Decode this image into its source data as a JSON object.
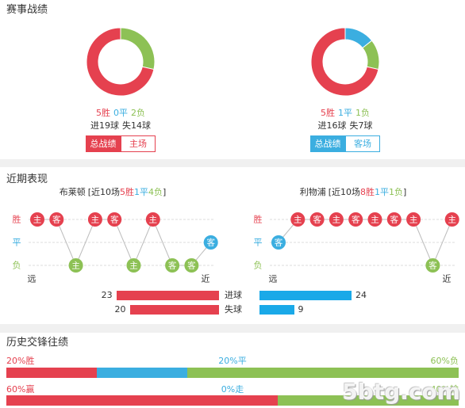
{
  "colors": {
    "win": "#e5414f",
    "draw": "#3baee0",
    "loss": "#8dc155",
    "text": "#333333"
  },
  "record": {
    "title": "赛事战绩",
    "teams": [
      {
        "wins": 5,
        "draws": 0,
        "losses": 2,
        "win_text": "5胜",
        "draw_text": "0平",
        "loss_text": "2负",
        "goals_text": "进19球",
        "conceded_text": "失14球",
        "tab_all": "总战绩",
        "tab_venue": "主场",
        "accent": "#e5414f"
      },
      {
        "wins": 5,
        "draws": 1,
        "losses": 1,
        "win_text": "5胜",
        "draw_text": "1平",
        "loss_text": "1负",
        "goals_text": "进16球",
        "conceded_text": "失7球",
        "tab_all": "总战绩",
        "tab_venue": "客场",
        "accent": "#3baee0"
      }
    ]
  },
  "recent": {
    "title": "近期表现",
    "rows": [
      "胜",
      "平",
      "负"
    ],
    "far_label": "远",
    "near_label": "近",
    "teams": [
      {
        "name": "布莱顿",
        "summary_open": "[近10场",
        "win_text": "5胜",
        "draw_text": "1平",
        "loss_text": "4负",
        "summary_close": "]",
        "games": [
          {
            "venue": "主",
            "result": "胜"
          },
          {
            "venue": "客",
            "result": "胜"
          },
          {
            "venue": "主",
            "result": "负"
          },
          {
            "venue": "主",
            "result": "胜"
          },
          {
            "venue": "客",
            "result": "胜"
          },
          {
            "venue": "主",
            "result": "负"
          },
          {
            "venue": "主",
            "result": "胜"
          },
          {
            "venue": "客",
            "result": "负"
          },
          {
            "venue": "客",
            "result": "负"
          },
          {
            "venue": "客",
            "result": "平"
          }
        ]
      },
      {
        "name": "利物浦",
        "summary_open": "[近10场",
        "win_text": "8胜",
        "draw_text": "1平",
        "loss_text": "1负",
        "summary_close": "]",
        "games": [
          {
            "venue": "客",
            "result": "平"
          },
          {
            "venue": "主",
            "result": "胜"
          },
          {
            "venue": "客",
            "result": "胜"
          },
          {
            "venue": "主",
            "result": "胜"
          },
          {
            "venue": "客",
            "result": "胜"
          },
          {
            "venue": "主",
            "result": "胜"
          },
          {
            "venue": "客",
            "result": "胜"
          },
          {
            "venue": "主",
            "result": "胜"
          },
          {
            "venue": "客",
            "result": "负"
          },
          {
            "venue": "主",
            "result": "胜"
          }
        ]
      }
    ],
    "goals": [
      {
        "label": "进球",
        "home": 23,
        "away": 24
      },
      {
        "label": "失球",
        "home": 20,
        "away": 9
      }
    ]
  },
  "history": {
    "title": "历史交锋往绩",
    "rows": [
      {
        "segments": [
          {
            "label": "20%胜",
            "percent": 20,
            "color": "#e5414f"
          },
          {
            "label": "20%平",
            "percent": 20,
            "color": "#3baee0"
          },
          {
            "label": "60%负",
            "percent": 60,
            "color": "#8dc155"
          }
        ]
      },
      {
        "segments": [
          {
            "label": "60%赢",
            "percent": 60,
            "color": "#e5414f"
          },
          {
            "label": "0%走",
            "percent": 0,
            "color": "#3baee0"
          },
          {
            "label": "40%输",
            "percent": 40,
            "color": "#8dc155"
          }
        ]
      }
    ]
  },
  "watermark": "5btg.com"
}
